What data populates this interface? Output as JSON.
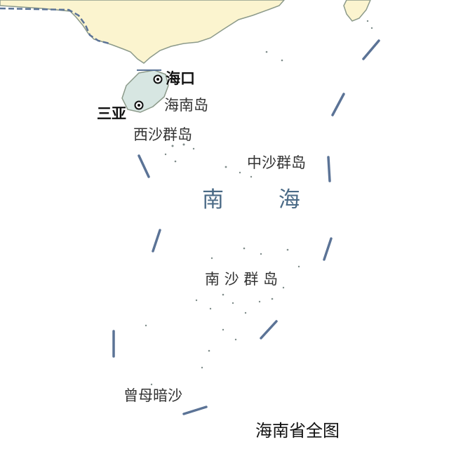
{
  "map": {
    "title": "海南省全图",
    "cities": [
      {
        "name": "海口",
        "type": "capital"
      },
      {
        "name": "三亚",
        "type": "city"
      }
    ],
    "islands": {
      "hainan": "海南岛",
      "xisha": "西沙群岛",
      "zhongsha": "中沙群岛",
      "nansha": "南 沙 群 岛",
      "zengmu": "曾母暗沙"
    },
    "sea": "南 海",
    "colors": {
      "land": "#fbf4cf",
      "island": "#d7e6e2",
      "coast": "#8c9a8a",
      "boundary": "#5b7396",
      "water": "#ffffff"
    }
  }
}
